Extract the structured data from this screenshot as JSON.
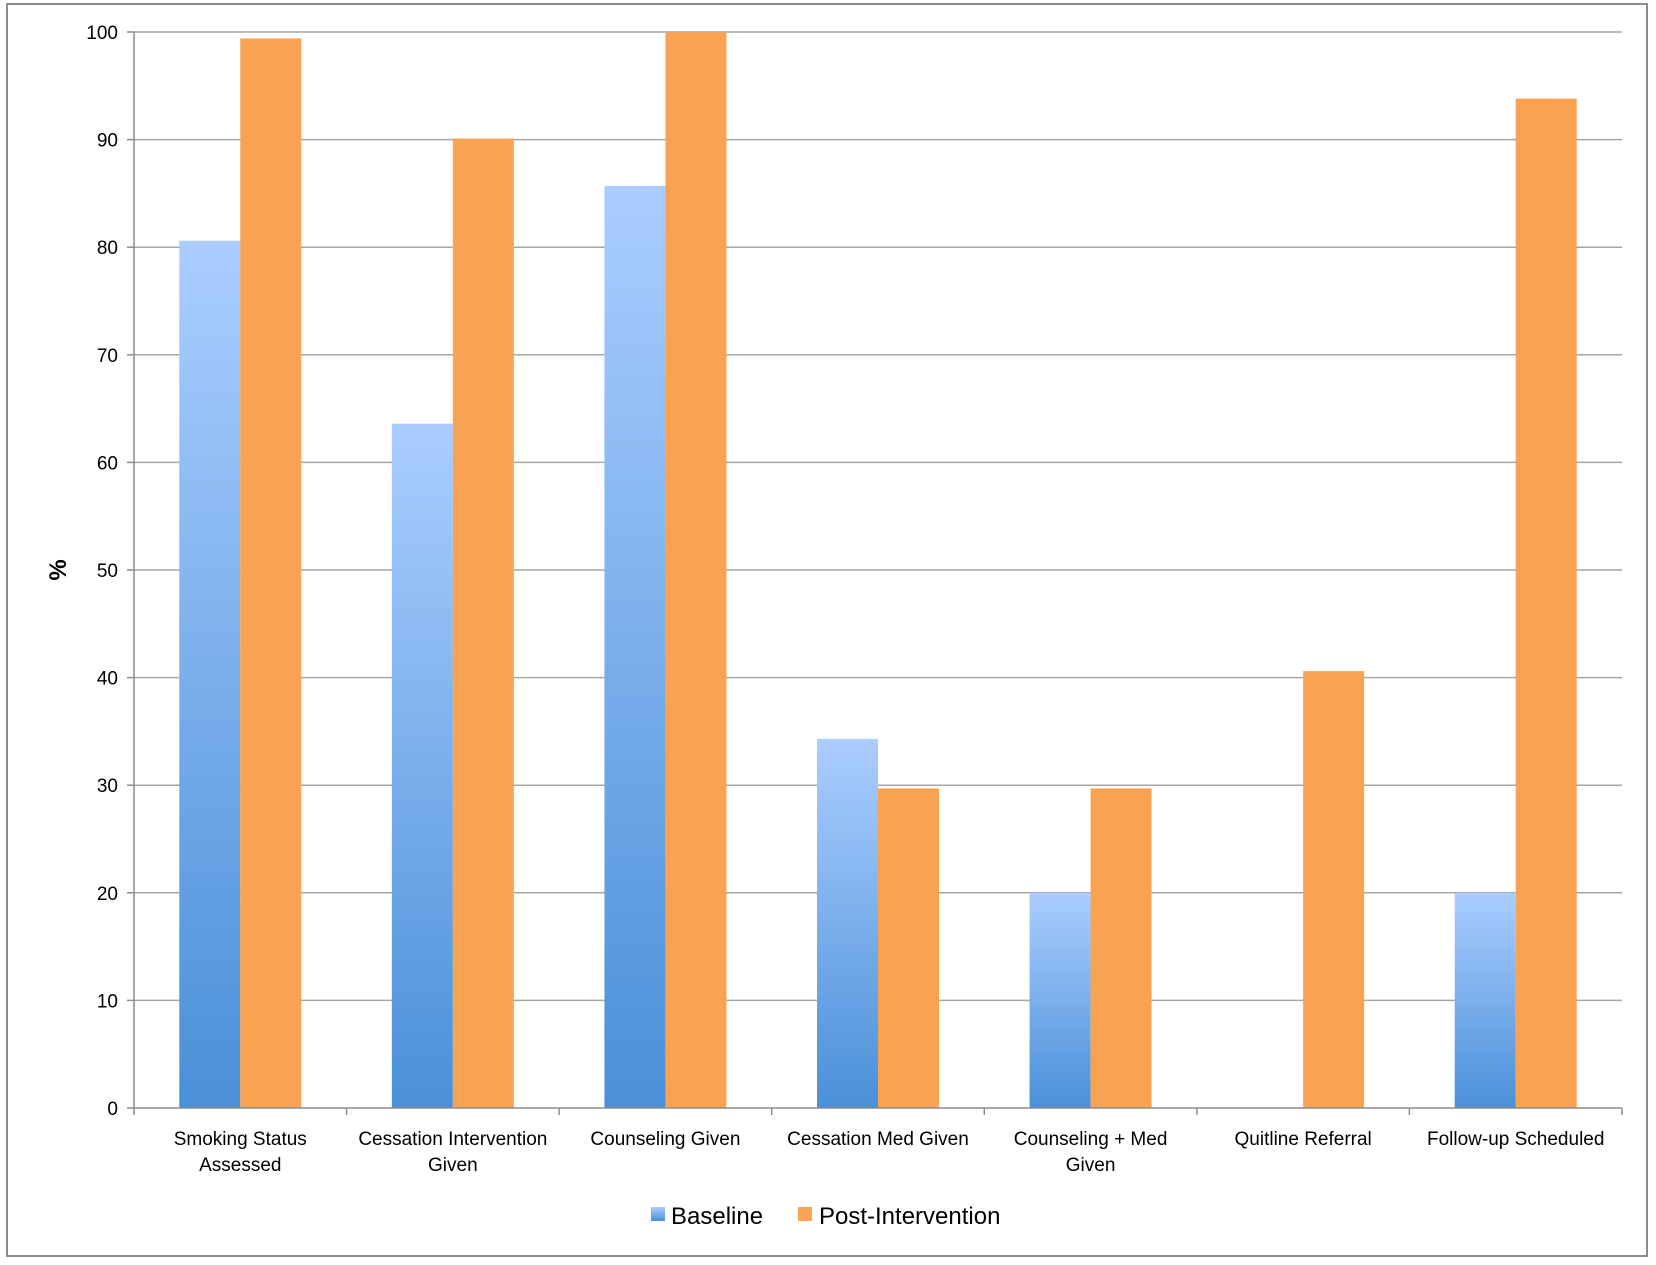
{
  "chart_data": {
    "type": "bar",
    "title": "",
    "xlabel": "",
    "ylabel": "%",
    "ylim": [
      0,
      100
    ],
    "yticks": [
      0,
      10,
      20,
      30,
      40,
      50,
      60,
      70,
      80,
      90,
      100
    ],
    "grid": true,
    "legend_position": "bottom",
    "categories": [
      [
        "Smoking Status",
        "Assessed"
      ],
      [
        "Cessation Intervention",
        "Given"
      ],
      [
        "Counseling Given"
      ],
      [
        "Cessation Med Given"
      ],
      [
        "Counseling + Med",
        "Given"
      ],
      [
        "Quitline Referral"
      ],
      [
        "Follow-up Scheduled"
      ]
    ],
    "series": [
      {
        "name": "Baseline",
        "color_top": "#abcdff",
        "color_bottom": "#4a90d9",
        "values": [
          80.6,
          63.6,
          85.7,
          34.3,
          20.0,
          0,
          20.0
        ]
      },
      {
        "name": "Post-Intervention",
        "color_top": "#f9a352",
        "color_bottom": "#f9a352",
        "values": [
          99.4,
          90.1,
          100,
          29.7,
          29.7,
          40.6,
          93.8
        ]
      }
    ]
  }
}
